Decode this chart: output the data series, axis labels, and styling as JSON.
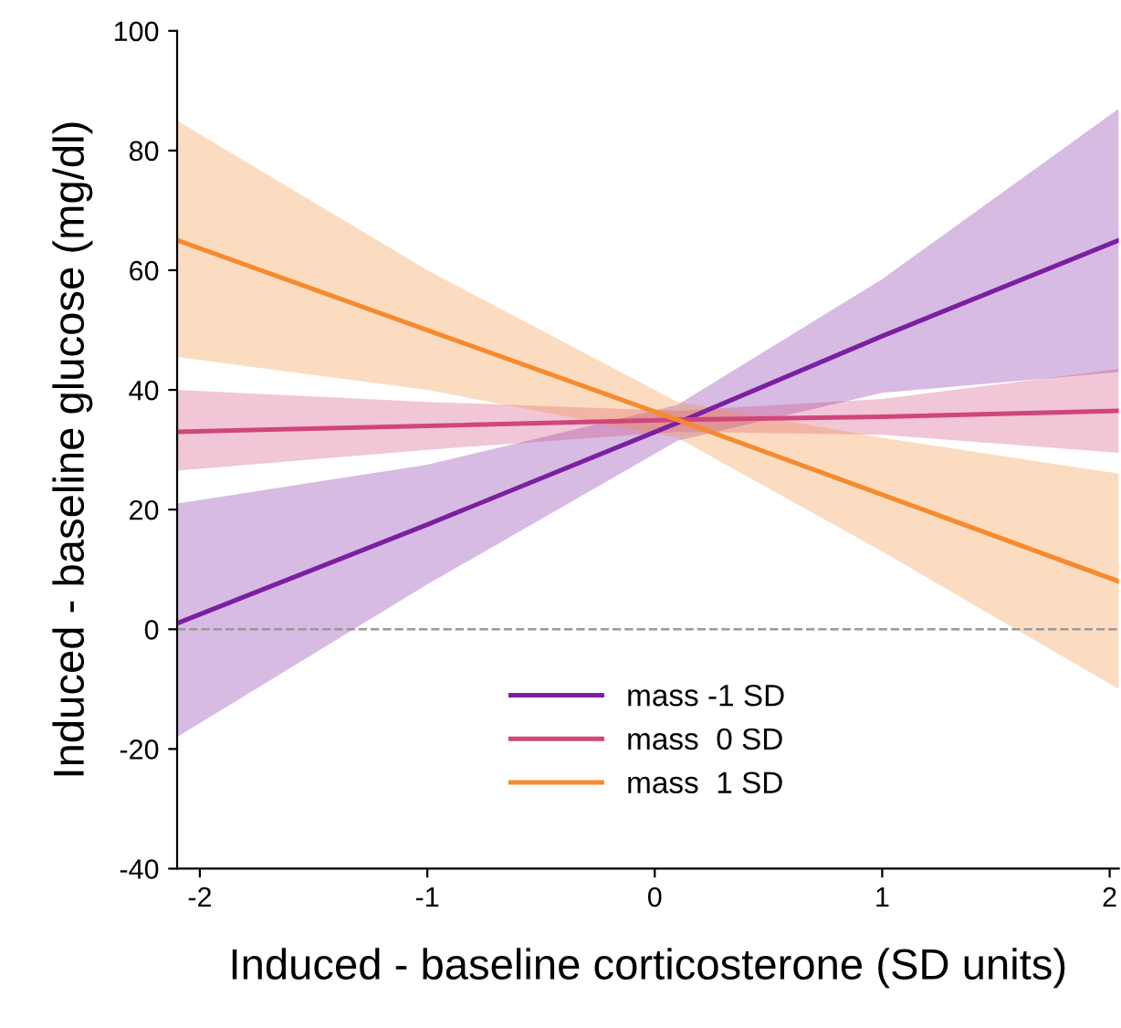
{
  "chart_data": {
    "type": "line",
    "xlabel": "Induced - baseline corticosterone (SD units)",
    "ylabel": "Induced - baseline glucose (mg/dl)",
    "x": [
      -2.1,
      -1,
      0.1,
      1,
      2.04
    ],
    "series": [
      {
        "name": "mass -1 SD",
        "color": "#7b1fa2",
        "values": [
          1,
          17.5,
          34.5,
          49,
          65
        ],
        "lower": [
          -18,
          7.5,
          31.5,
          39.5,
          43
        ],
        "upper": [
          21,
          27.5,
          37.5,
          58.5,
          87
        ]
      },
      {
        "name": "mass  0 SD",
        "color": "#d0467a",
        "values": [
          33,
          34,
          35,
          35.5,
          36.5
        ],
        "lower": [
          26.5,
          30,
          33,
          32.5,
          29.5
        ],
        "upper": [
          40,
          38,
          36.5,
          38.5,
          43.5
        ]
      },
      {
        "name": "mass  1 SD",
        "color": "#f58a2e",
        "values": [
          65,
          50,
          35,
          22.5,
          8
        ],
        "lower": [
          45.5,
          40,
          32,
          13,
          -10
        ],
        "upper": [
          85,
          60,
          38,
          32,
          26
        ]
      }
    ],
    "xlim": [
      -2.1,
      2.04
    ],
    "ylim": [
      -40,
      100
    ],
    "xticks": [
      -2,
      -1,
      0,
      1,
      2
    ],
    "yticks": [
      -40,
      -20,
      0,
      20,
      40,
      60,
      80,
      100
    ],
    "ref_lines": [
      {
        "axis": "y",
        "value": 0,
        "color": "#999999",
        "line_style": "dashed"
      }
    ],
    "legend": "bottom",
    "grid": false
  }
}
